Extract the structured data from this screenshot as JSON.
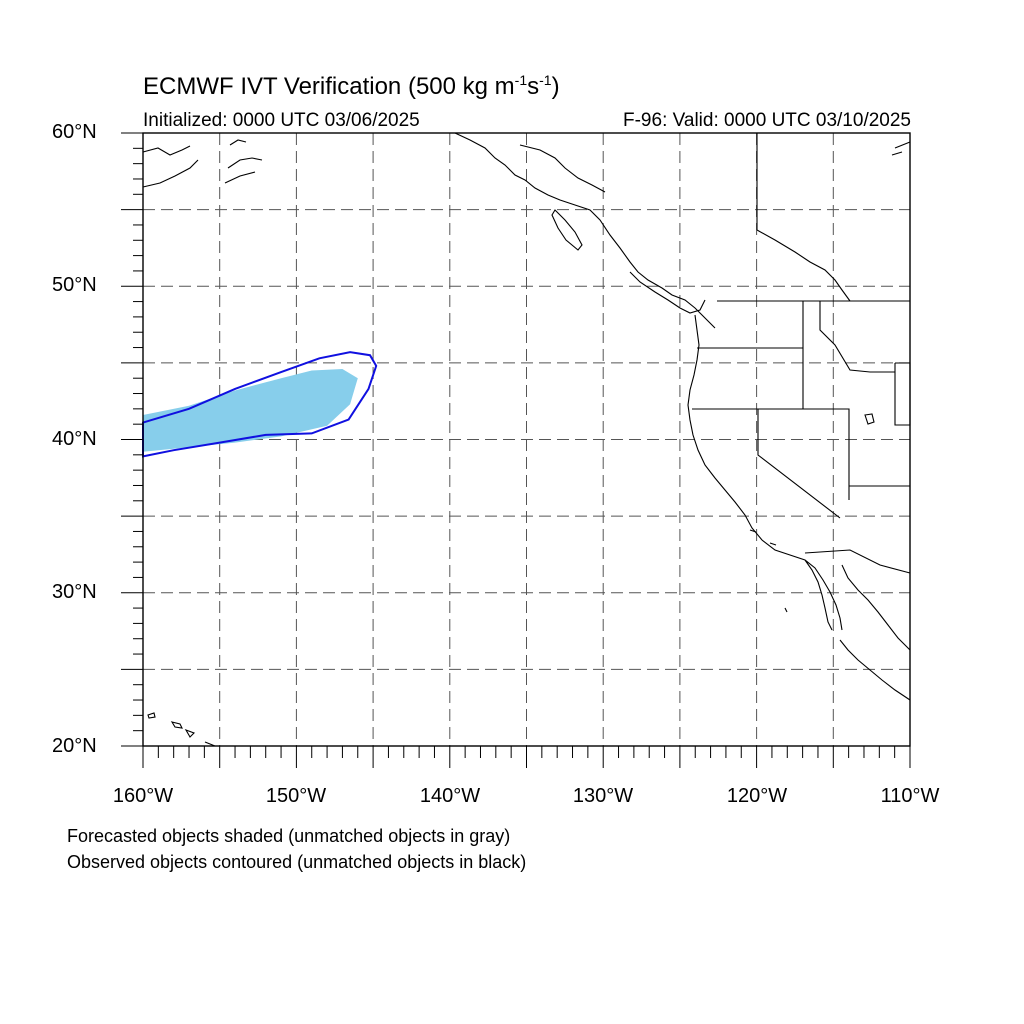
{
  "title": {
    "main": "ECMWF IVT Verification (500 kg m",
    "sup1": "-1",
    "mid": "s",
    "sup2": "-1",
    "end": ")"
  },
  "subtitle": {
    "initialized": "Initialized: 0000 UTC 03/06/2025",
    "valid": "F-96: Valid: 0000 UTC 03/10/2025"
  },
  "map": {
    "lon_range": [
      -160,
      -110
    ],
    "lat_range": [
      20,
      60
    ],
    "grid": "dashed, every 5 degrees",
    "lat_labels": [
      "60°N",
      "50°N",
      "40°N",
      "30°N",
      "20°N"
    ],
    "lon_labels": [
      "160°W",
      "150°W",
      "140°W",
      "130°W",
      "120°W",
      "110°W"
    ],
    "forecast_object_color": "#87ceeb",
    "observed_contour_color": "#1010e0",
    "coastline_color": "#000000",
    "grid_color": "#555555"
  },
  "chart_data": {
    "type": "map",
    "forecast_object": {
      "label": "Forecasted object (matched, shaded)",
      "lon": [
        -160,
        -157,
        -154,
        -151,
        -149,
        -147,
        -146,
        -146.5,
        -148,
        -151,
        -154,
        -157,
        -160
      ],
      "lat": [
        41.6,
        42.2,
        43.2,
        44.0,
        44.5,
        44.6,
        44.0,
        42.3,
        40.9,
        40.2,
        39.8,
        39.5,
        39.2
      ]
    },
    "observed_object": {
      "label": "Observed object (matched, contoured)",
      "lon": [
        -160,
        -157,
        -154,
        -151,
        -148.5,
        -146.5,
        -145.2,
        -144.8,
        -145.3,
        -146.6,
        -149,
        -152,
        -155,
        -158,
        -160
      ],
      "lat": [
        41.1,
        42.0,
        43.3,
        44.4,
        45.3,
        45.7,
        45.5,
        44.8,
        43.3,
        41.3,
        40.4,
        40.3,
        39.8,
        39.3,
        38.9
      ]
    }
  },
  "notes": {
    "forecast": "Forecasted objects shaded (unmatched objects in gray)",
    "observed": "Observed objects contoured (unmatched objects in black)"
  }
}
